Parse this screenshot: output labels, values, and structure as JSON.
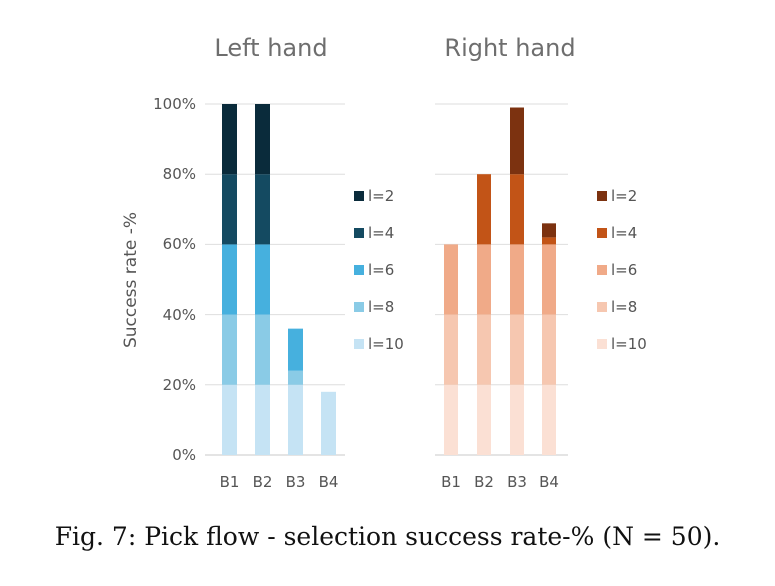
{
  "caption": "Fig. 7: Pick flow - selection success rate-% (N = 50).",
  "chart_data": [
    {
      "type": "bar",
      "stacked": true,
      "title": "Left hand",
      "ylabel": "Success rate -%",
      "xlabel": "",
      "ylim": [
        0,
        100
      ],
      "yticks": [
        "0%",
        "20%",
        "40%",
        "60%",
        "80%",
        "100%"
      ],
      "grid": true,
      "legend_position": "right",
      "categories": [
        "B1",
        "B2",
        "B3",
        "B4"
      ],
      "series": [
        {
          "name": "l=10",
          "color": "#c5e3f4",
          "values": [
            20,
            20,
            20,
            18
          ]
        },
        {
          "name": "l=8",
          "color": "#8acbe6",
          "values": [
            20,
            20,
            4,
            0
          ]
        },
        {
          "name": "l=6",
          "color": "#46b0de",
          "values": [
            20,
            20,
            12,
            0
          ]
        },
        {
          "name": "l=4",
          "color": "#144a61",
          "values": [
            20,
            20,
            0,
            0
          ]
        },
        {
          "name": "l=2",
          "color": "#0a2b3b",
          "values": [
            20,
            20,
            0,
            0
          ]
        }
      ]
    },
    {
      "type": "bar",
      "stacked": true,
      "title": "Right hand",
      "ylabel": "",
      "xlabel": "",
      "ylim": [
        0,
        100
      ],
      "grid": true,
      "legend_position": "right",
      "categories": [
        "B1",
        "B2",
        "B3",
        "B4"
      ],
      "series": [
        {
          "name": "l=10",
          "color": "#fbe0d4",
          "values": [
            20,
            20,
            20,
            20
          ]
        },
        {
          "name": "l=8",
          "color": "#f6c7b0",
          "values": [
            20,
            20,
            20,
            20
          ]
        },
        {
          "name": "l=6",
          "color": "#f0aa88",
          "values": [
            20,
            20,
            20,
            20
          ]
        },
        {
          "name": "l=4",
          "color": "#c25417",
          "values": [
            0,
            20,
            20,
            2
          ]
        },
        {
          "name": "l=2",
          "color": "#7c3210",
          "values": [
            0,
            0,
            19,
            4
          ]
        }
      ]
    }
  ]
}
